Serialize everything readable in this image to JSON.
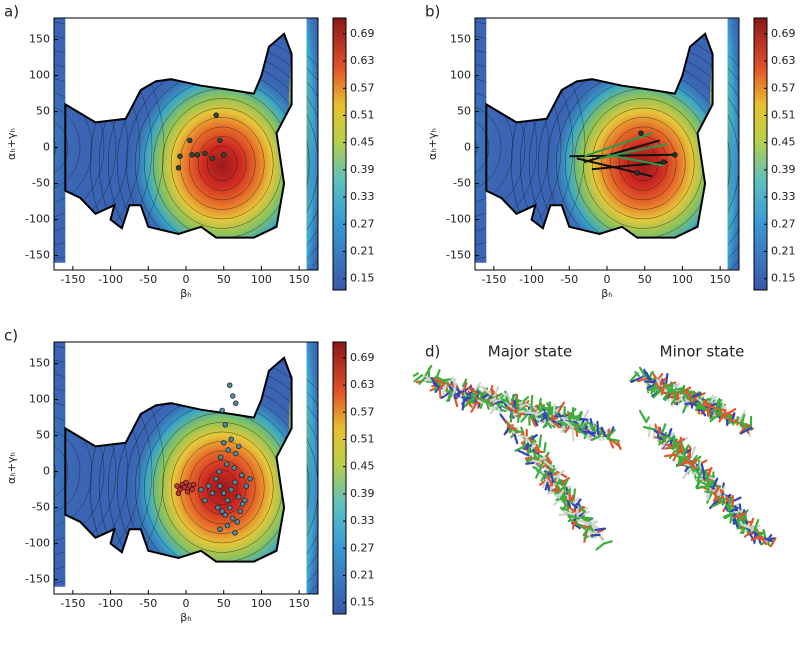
{
  "chart_data": [
    {
      "type": "heatmap",
      "panel_label": "a)",
      "x_label": "βₕ",
      "y_label": "αₕ+γₕ",
      "xlim": [
        -175,
        175
      ],
      "ylim": [
        -170,
        180
      ],
      "xticks": [
        -150,
        -100,
        -50,
        0,
        50,
        100,
        150
      ],
      "yticks": [
        -150,
        -100,
        -50,
        0,
        50,
        100,
        150
      ],
      "colorbar": {
        "lim": [
          0.125,
          0.725
        ],
        "ticks": [
          0.15,
          0.21,
          0.27,
          0.33,
          0.39,
          0.45,
          0.51,
          0.57,
          0.63,
          0.69
        ]
      },
      "points": [
        {
          "color": "#2a4a3a",
          "x": [
            -8,
            -10,
            8,
            5,
            15,
            40,
            45,
            25,
            50,
            35
          ],
          "y": [
            -12,
            -28,
            -10,
            10,
            -10,
            45,
            10,
            -8,
            -10,
            -15
          ]
        }
      ]
    },
    {
      "type": "heatmap",
      "panel_label": "b)",
      "x_label": "βₕ",
      "y_label": "αₕ+γₕ",
      "xlim": [
        -175,
        175
      ],
      "ylim": [
        -170,
        180
      ],
      "xticks": [
        -150,
        -100,
        -50,
        0,
        50,
        100,
        150
      ],
      "yticks": [
        -150,
        -100,
        -50,
        0,
        50,
        100,
        150
      ],
      "colorbar": {
        "lim": [
          0.125,
          0.725
        ],
        "ticks": [
          0.15,
          0.21,
          0.27,
          0.33,
          0.39,
          0.45,
          0.51,
          0.57,
          0.63,
          0.69
        ]
      },
      "segments": [
        {
          "color": "#111111",
          "x": [
            -50,
            90
          ],
          "y": [
            -12,
            -10
          ]
        },
        {
          "color": "#111111",
          "x": [
            -40,
            60
          ],
          "y": [
            -15,
            -40
          ]
        },
        {
          "color": "#111111",
          "x": [
            -30,
            70
          ],
          "y": [
            -20,
            10
          ]
        },
        {
          "color": "#111111",
          "x": [
            -20,
            80
          ],
          "y": [
            -30,
            -20
          ]
        },
        {
          "color": "#2e9a4a",
          "x": [
            -10,
            80
          ],
          "y": [
            -15,
            5
          ]
        },
        {
          "color": "#2e9a4a",
          "x": [
            0,
            75
          ],
          "y": [
            -10,
            -25
          ]
        },
        {
          "color": "#2e9a4a",
          "x": [
            -30,
            60
          ],
          "y": [
            -12,
            20
          ]
        }
      ],
      "points": [
        {
          "color": "#1a3a2a",
          "x": [
            90,
            75,
            45,
            40
          ],
          "y": [
            -10,
            -20,
            20,
            -35
          ]
        }
      ]
    },
    {
      "type": "heatmap",
      "panel_label": "c)",
      "x_label": "βₕ",
      "y_label": "αₕ+γₕ",
      "xlim": [
        -175,
        175
      ],
      "ylim": [
        -170,
        180
      ],
      "xticks": [
        -150,
        -100,
        -50,
        0,
        50,
        100,
        150
      ],
      "yticks": [
        -150,
        -100,
        -50,
        0,
        50,
        100,
        150
      ],
      "colorbar": {
        "lim": [
          0.125,
          0.725
        ],
        "ticks": [
          0.15,
          0.21,
          0.27,
          0.33,
          0.39,
          0.45,
          0.51,
          0.57,
          0.63,
          0.69
        ]
      },
      "points": [
        {
          "color": "#d03030",
          "x": [
            -12,
            -8,
            -5,
            -2,
            2,
            5,
            8,
            -10,
            0,
            10
          ],
          "y": [
            -20,
            -25,
            -18,
            -22,
            -28,
            -20,
            -25,
            -30,
            -15,
            -18
          ]
        },
        {
          "color": "#4a8aa0",
          "x": [
            40,
            45,
            50,
            55,
            60,
            65,
            70,
            75,
            80,
            42,
            48,
            52,
            58,
            62,
            68,
            72,
            78,
            44,
            54,
            64,
            74,
            46,
            56,
            66,
            50,
            60,
            70,
            35,
            30,
            25,
            45,
            55,
            65,
            58,
            62,
            66,
            85,
            20,
            48,
            52
          ],
          "y": [
            -10,
            -20,
            -30,
            -40,
            -25,
            -15,
            -35,
            -45,
            -20,
            -50,
            -55,
            -60,
            -50,
            -65,
            -70,
            -55,
            -40,
            0,
            10,
            5,
            -5,
            20,
            30,
            25,
            40,
            45,
            35,
            -30,
            -20,
            -40,
            -80,
            -75,
            -85,
            120,
            105,
            95,
            -10,
            -25,
            85,
            65
          ]
        }
      ]
    }
  ],
  "panel_d": {
    "label": "d)",
    "titles": [
      "Major state",
      "Minor state"
    ]
  }
}
